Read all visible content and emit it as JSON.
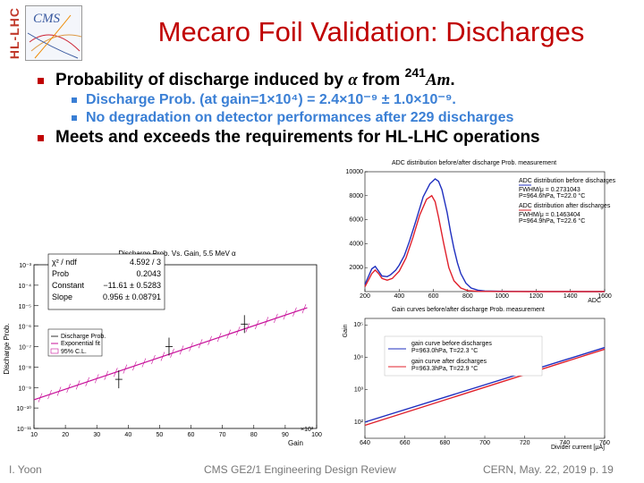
{
  "logo": {
    "side_text": "HL-LHC",
    "cms_text": "CMS"
  },
  "title": "Mecaro Foil Validation: Discharges",
  "bullets": {
    "first_prefix": "Probability of discharge induced by ",
    "first_alpha": "α",
    "first_from": " from ",
    "first_isotope_mass": "241",
    "first_isotope": "Am",
    "first_end": ".",
    "sub1": "Discharge Prob. (at gain=1×10⁴) = 2.4×10⁻⁹ ± 1.0×10⁻⁹.",
    "sub2": "No degradation on detector performances after 229 discharges",
    "second": "Meets and exceeds the requirements for HL-LHC operations"
  },
  "footer": {
    "author": "I. Yoon",
    "center": "CMS GE2/1 Engineering Design Review",
    "right": "CERN, May. 22, 2019 p. 19"
  },
  "colors": {
    "title": "#c00000",
    "sub_bullets": "#3a7fd5",
    "before": "#1f2fbf",
    "after": "#e0202b",
    "fit": "#c8109a"
  },
  "chart_data": [
    {
      "type": "scatter",
      "title": "Discharge Prob. Vs. Gain, 5.5 MeV α",
      "xlabel": "Gain",
      "ylabel": "Discharge Prob.",
      "x_multiplier_label": "×10³",
      "xlim": [
        10,
        100
      ],
      "ylim_log10": [
        -11,
        -3
      ],
      "y_scale": "log",
      "x_ticks": [
        "10",
        "20",
        "30",
        "40",
        "50",
        "60",
        "70",
        "80",
        "90",
        "100"
      ],
      "y_ticks": [
        "10⁻³",
        "10⁻⁴",
        "10⁻⁵",
        "10⁻⁶",
        "10⁻⁷",
        "10⁻⁸",
        "10⁻⁹",
        "10⁻¹⁰",
        "10⁻¹¹"
      ],
      "stats": [
        {
          "label": "χ² / ndf",
          "value": "4.592 / 3"
        },
        {
          "label": "Prob",
          "value": "0.2043"
        },
        {
          "label": "Constant",
          "value": "−11.61 ± 0.5283"
        },
        {
          "label": "Slope",
          "value": "0.956 ± 0.08791"
        }
      ],
      "legend": [
        "Discharge Prob.",
        "Exponential fit",
        "95% C.L."
      ],
      "series": [
        {
          "name": "Discharge Prob.",
          "x": [
            37,
            53,
            77
          ],
          "y_log10": [
            -8.6,
            -7.0,
            -5.9
          ]
        }
      ],
      "fit": {
        "x_start": 10,
        "x_end": 97,
        "y_log10_start": -9.6,
        "y_log10_end": -5.1
      }
    },
    {
      "type": "line",
      "title": "ADC distribution before/after discharge Prob. measurement",
      "xlabel": "ADC",
      "xlim": [
        200,
        1600
      ],
      "ylim": [
        0,
        10000
      ],
      "x_ticks": [
        "200",
        "400",
        "600",
        "800",
        "1000",
        "1200",
        "1400",
        "1600"
      ],
      "y_ticks": [
        "2000",
        "4000",
        "6000",
        "8000",
        "10000"
      ],
      "legend": [
        {
          "title": "ADC distribution before discharges",
          "lines": [
            "FWHM/μ = 0.2731043",
            "P=964.6hPa, T=22.0 °C"
          ]
        },
        {
          "title": "ADC distribution after discharges",
          "lines": [
            "FWHM/μ = 0.1463404",
            "P=964.9hPa, T=22.6 °C"
          ]
        }
      ],
      "series": [
        {
          "name": "before",
          "x": [
            200,
            240,
            260,
            280,
            300,
            330,
            350,
            380,
            400,
            430,
            460,
            500,
            540,
            580,
            610,
            630,
            650,
            680,
            700,
            720,
            740,
            760,
            790,
            820,
            860,
            900,
            1000,
            1200,
            1400,
            1600
          ],
          "y": [
            600,
            1900,
            2100,
            1700,
            1300,
            1250,
            1400,
            1800,
            2200,
            3000,
            4200,
            6000,
            7900,
            9000,
            9400,
            9200,
            8500,
            6600,
            5000,
            3600,
            2400,
            1500,
            700,
            300,
            120,
            50,
            20,
            10,
            5,
            0
          ]
        },
        {
          "name": "after",
          "x": [
            200,
            240,
            260,
            280,
            300,
            330,
            360,
            400,
            440,
            480,
            520,
            560,
            590,
            610,
            630,
            660,
            690,
            720,
            760,
            800,
            860,
            1000,
            1200,
            1600
          ],
          "y": [
            400,
            1500,
            1800,
            1500,
            1100,
            950,
            1100,
            1700,
            2800,
            4500,
            6400,
            7700,
            8000,
            7500,
            6200,
            4000,
            2000,
            900,
            300,
            80,
            20,
            5,
            0,
            0
          ]
        }
      ]
    },
    {
      "type": "line",
      "title": "Gain curves before/after discharge Prob. measurement",
      "xlabel": "Divider current [μA]",
      "ylabel": "Gain",
      "y_scale": "log",
      "xlim": [
        640,
        760
      ],
      "x_ticks": [
        "640",
        "660",
        "680",
        "700",
        "720",
        "740",
        "760"
      ],
      "y_ticks": [
        "10⁵",
        "10⁴",
        "10³",
        "10²"
      ],
      "legend": [
        {
          "title": "gain curve before discharges",
          "lines": [
            "P=963.0hPa, T=22.3 °C"
          ]
        },
        {
          "title": "gain curve after discharges",
          "lines": [
            "P=963.3hPa, T=22.9 °C"
          ]
        }
      ],
      "series": [
        {
          "name": "before",
          "x": [
            640,
            760
          ],
          "y_log10": [
            2.0,
            4.3
          ]
        },
        {
          "name": "after",
          "x": [
            640,
            760
          ],
          "y_log10": [
            1.9,
            4.25
          ]
        }
      ]
    }
  ]
}
